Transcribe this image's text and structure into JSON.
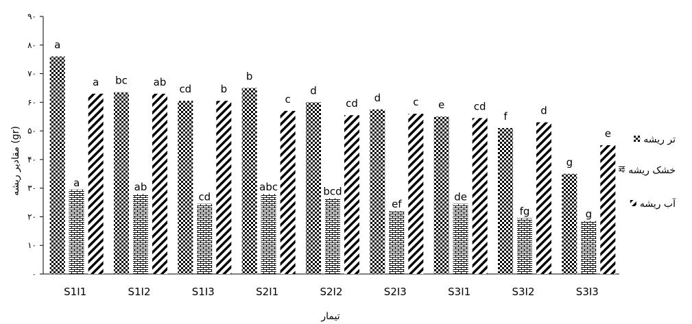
{
  "chart_data": {
    "type": "bar",
    "title": "",
    "xlabel": "تیمار",
    "ylabel": "مقادیر ریشه (gr)",
    "ylim": [
      0,
      90
    ],
    "yticks": [
      0,
      10,
      20,
      30,
      40,
      50,
      60,
      70,
      80,
      90
    ],
    "ytick_labels": [
      "۰",
      "۱۰",
      "۲۰",
      "۳۰",
      "۴۰",
      "۵۰",
      "۶۰",
      "۷۰",
      "۸۰",
      "۹۰"
    ],
    "categories": [
      "S1I1",
      "S1I2",
      "S1I3",
      "S2I1",
      "S2I2",
      "S2I3",
      "S3I1",
      "S3I2",
      "S3I3"
    ],
    "legend_position": "right",
    "series": [
      {
        "name": "تر ریشه",
        "pattern": "checker",
        "values": [
          76,
          63.5,
          60.5,
          65,
          60,
          57.5,
          55,
          51,
          35
        ],
        "labels": [
          "a",
          "bc",
          "cd",
          "b",
          "d",
          "d",
          "e",
          "f",
          "g"
        ]
      },
      {
        "name": "خشک ریشه",
        "pattern": "brick",
        "values": [
          29.5,
          28,
          24.5,
          28,
          26.5,
          22,
          24.5,
          19.5,
          18.5
        ],
        "labels": [
          "a",
          "ab",
          "cd",
          "abc",
          "bcd",
          "ef",
          "de",
          "fg",
          "g"
        ]
      },
      {
        "name": "آب ریشه",
        "pattern": "diagonal",
        "values": [
          63,
          63,
          60.5,
          57,
          55.5,
          56,
          54.5,
          53,
          45
        ],
        "labels": [
          "a",
          "ab",
          "b",
          "c",
          "cd",
          "c",
          "cd",
          "d",
          "e"
        ]
      }
    ],
    "colors": {
      "bar": "#000000",
      "axis": "#000000",
      "background": "#ffffff"
    }
  }
}
